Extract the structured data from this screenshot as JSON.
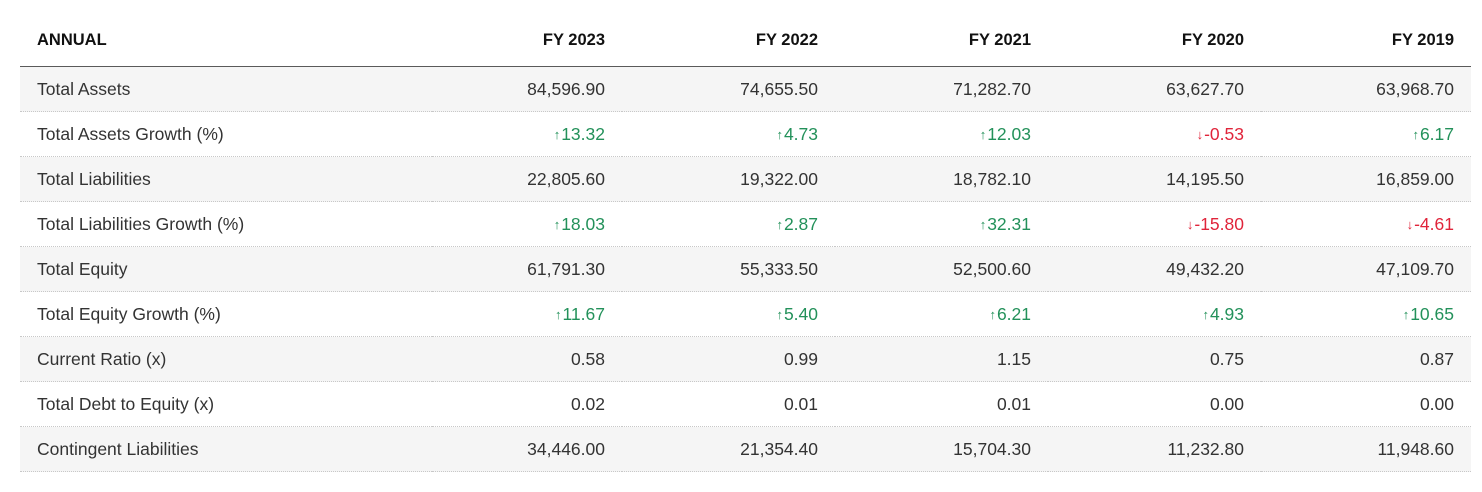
{
  "table": {
    "header": {
      "label": "ANNUAL",
      "years": [
        "FY 2023",
        "FY 2022",
        "FY 2021",
        "FY 2020",
        "FY 2019"
      ]
    },
    "rows": [
      {
        "label": "Total Assets",
        "cells": [
          {
            "value": "84,596.90",
            "dir": ""
          },
          {
            "value": "74,655.50",
            "dir": ""
          },
          {
            "value": "71,282.70",
            "dir": ""
          },
          {
            "value": "63,627.70",
            "dir": ""
          },
          {
            "value": "63,968.70",
            "dir": ""
          }
        ]
      },
      {
        "label": "Total Assets Growth (%)",
        "cells": [
          {
            "value": "13.32",
            "dir": "up"
          },
          {
            "value": "4.73",
            "dir": "up"
          },
          {
            "value": "12.03",
            "dir": "up"
          },
          {
            "value": "-0.53",
            "dir": "down"
          },
          {
            "value": "6.17",
            "dir": "up"
          }
        ]
      },
      {
        "label": "Total Liabilities",
        "cells": [
          {
            "value": "22,805.60",
            "dir": ""
          },
          {
            "value": "19,322.00",
            "dir": ""
          },
          {
            "value": "18,782.10",
            "dir": ""
          },
          {
            "value": "14,195.50",
            "dir": ""
          },
          {
            "value": "16,859.00",
            "dir": ""
          }
        ]
      },
      {
        "label": "Total Liabilities Growth (%)",
        "cells": [
          {
            "value": "18.03",
            "dir": "up"
          },
          {
            "value": "2.87",
            "dir": "up"
          },
          {
            "value": "32.31",
            "dir": "up"
          },
          {
            "value": "-15.80",
            "dir": "down"
          },
          {
            "value": "-4.61",
            "dir": "down"
          }
        ]
      },
      {
        "label": "Total Equity",
        "cells": [
          {
            "value": "61,791.30",
            "dir": ""
          },
          {
            "value": "55,333.50",
            "dir": ""
          },
          {
            "value": "52,500.60",
            "dir": ""
          },
          {
            "value": "49,432.20",
            "dir": ""
          },
          {
            "value": "47,109.70",
            "dir": ""
          }
        ]
      },
      {
        "label": "Total Equity Growth (%)",
        "cells": [
          {
            "value": "11.67",
            "dir": "up"
          },
          {
            "value": "5.40",
            "dir": "up"
          },
          {
            "value": "6.21",
            "dir": "up"
          },
          {
            "value": "4.93",
            "dir": "up"
          },
          {
            "value": "10.65",
            "dir": "up"
          }
        ]
      },
      {
        "label": "Current Ratio (x)",
        "cells": [
          {
            "value": "0.58",
            "dir": ""
          },
          {
            "value": "0.99",
            "dir": ""
          },
          {
            "value": "1.15",
            "dir": ""
          },
          {
            "value": "0.75",
            "dir": ""
          },
          {
            "value": "0.87",
            "dir": ""
          }
        ]
      },
      {
        "label": "Total Debt to Equity (x)",
        "cells": [
          {
            "value": "0.02",
            "dir": ""
          },
          {
            "value": "0.01",
            "dir": ""
          },
          {
            "value": "0.01",
            "dir": ""
          },
          {
            "value": "0.00",
            "dir": ""
          },
          {
            "value": "0.00",
            "dir": ""
          }
        ]
      },
      {
        "label": "Contingent Liabilities",
        "cells": [
          {
            "value": "34,446.00",
            "dir": ""
          },
          {
            "value": "21,354.40",
            "dir": ""
          },
          {
            "value": "15,704.30",
            "dir": ""
          },
          {
            "value": "11,232.80",
            "dir": ""
          },
          {
            "value": "11,948.60",
            "dir": ""
          }
        ]
      }
    ],
    "icons": {
      "up": "arrow-up-icon",
      "down": "arrow-down-icon"
    },
    "colors": {
      "up": "#23915a",
      "down": "#e0243a",
      "row_alt_bg": "#f5f5f5",
      "header_rule": "#5a5a5a"
    }
  }
}
